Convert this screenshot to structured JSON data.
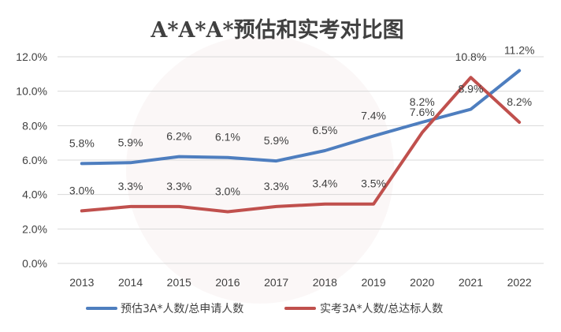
{
  "chart_data": {
    "type": "line",
    "title": "A*A*A*预估和实考对比图",
    "categories": [
      "2013",
      "2014",
      "2015",
      "2016",
      "2017",
      "2018",
      "2019",
      "2020",
      "2021",
      "2022"
    ],
    "ylim": [
      0,
      12
    ],
    "yticks": [
      "0.0%",
      "2.0%",
      "4.0%",
      "6.0%",
      "8.0%",
      "10.0%",
      "12.0%"
    ],
    "grid": true,
    "legend_position": "bottom",
    "series": [
      {
        "name": "预估3A*人数/总申请人数",
        "color": "#4e7ebf",
        "values": [
          5.8,
          5.85,
          6.2,
          6.15,
          5.95,
          6.55,
          7.4,
          8.2,
          8.95,
          11.2
        ],
        "labels": [
          "5.8%",
          "5.9%",
          "6.2%",
          "6.1%",
          "5.9%",
          "6.5%",
          "7.4%",
          "8.2%",
          "8.9%",
          "11.2%"
        ]
      },
      {
        "name": "实考3A*人数/总达标人数",
        "color": "#c0504d",
        "values": [
          3.05,
          3.3,
          3.3,
          3.0,
          3.3,
          3.45,
          3.45,
          7.6,
          10.8,
          8.2
        ],
        "labels": [
          "3.0%",
          "3.3%",
          "3.3%",
          "3.0%",
          "3.3%",
          "3.4%",
          "3.5%",
          "7.6%",
          "10.8%",
          "8.2%"
        ]
      }
    ]
  }
}
